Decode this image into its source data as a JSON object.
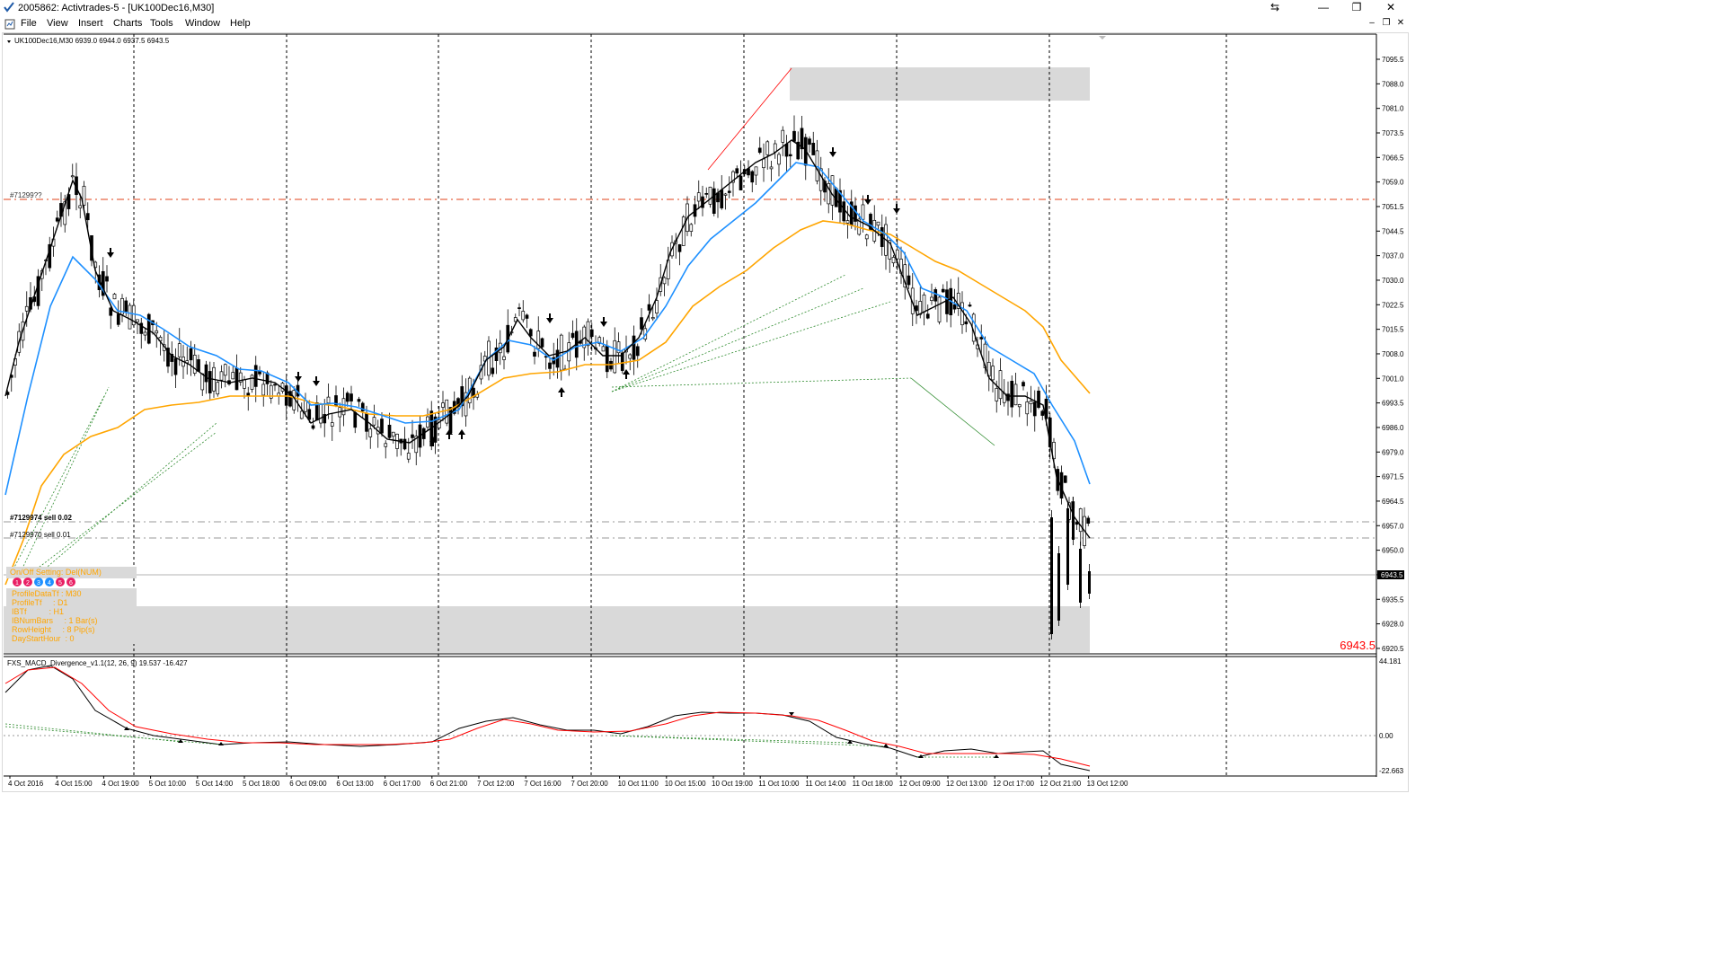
{
  "window": {
    "title": "2005862: Activtrades-5 - [UK100Dec16,M30]"
  },
  "menu": [
    "File",
    "View",
    "Insert",
    "Charts",
    "Tools",
    "Window",
    "Help"
  ],
  "chart": {
    "header": "UK100Dec16,M30  6939.0 6944.0 6937.5 6943.5",
    "price_labels": [
      "7095.5",
      "7088.0",
      "7081.0",
      "7073.5",
      "7066.5",
      "7059.0",
      "7051.5",
      "7044.5",
      "7037.0",
      "7030.0",
      "7022.5",
      "7015.5",
      "7008.0",
      "7001.0",
      "6993.5",
      "6986.0",
      "6979.0",
      "6971.5",
      "6964.5",
      "6957.0",
      "6950.0",
      "6943.5",
      "6935.5",
      "6928.0",
      "6920.5"
    ],
    "current_price": "6943.5",
    "big_price": "6943.5",
    "orders": [
      {
        "label": "#7129974 sell 0.02"
      },
      {
        "label": "#7129970 sell 0.01"
      }
    ],
    "order_left": "#71299??",
    "time_labels": [
      "4 Oct 2016",
      "4 Oct 15:00",
      "4 Oct 19:00",
      "5 Oct 10:00",
      "5 Oct 14:00",
      "5 Oct 18:00",
      "6 Oct 09:00",
      "6 Oct 13:00",
      "6 Oct 17:00",
      "6 Oct 21:00",
      "7 Oct 12:00",
      "7 Oct 16:00",
      "7 Oct 20:00",
      "10 Oct 11:00",
      "10 Oct 15:00",
      "10 Oct 19:00",
      "11 Oct 10:00",
      "11 Oct 14:00",
      "11 Oct 18:00",
      "12 Oct 09:00",
      "12 Oct 13:00",
      "12 Oct 17:00",
      "12 Oct 21:00",
      "13 Oct 12:00"
    ],
    "onoff": "On/Off Setting: Del(NUM)",
    "circles": [
      "1",
      "2",
      "3",
      "4",
      "5",
      "6"
    ],
    "info_panel": [
      "ProfileDataTf : M30",
      "ProfileTf     : D1",
      "IBTf          : H1",
      "IBNumBars     : 1 Bar(s)",
      "RowHeight     : 8 Pip(s)",
      "DayStartHour  : 0"
    ]
  },
  "indicator": {
    "header": "FXS_MACD_Divergence_v1.1(12, 26, 9) 19.537 -16.427",
    "labels": [
      "44.181",
      "0.00",
      "-22.663"
    ]
  },
  "colors": {
    "bull": "#ffffff",
    "bear": "#000000",
    "ma_fast": "#000000",
    "ma_mid": "#1e90ff",
    "ma_slow": "#ffa500",
    "signal": "#ff0000",
    "zone": "#d9d9d9",
    "info_text": "#ffa500"
  }
}
